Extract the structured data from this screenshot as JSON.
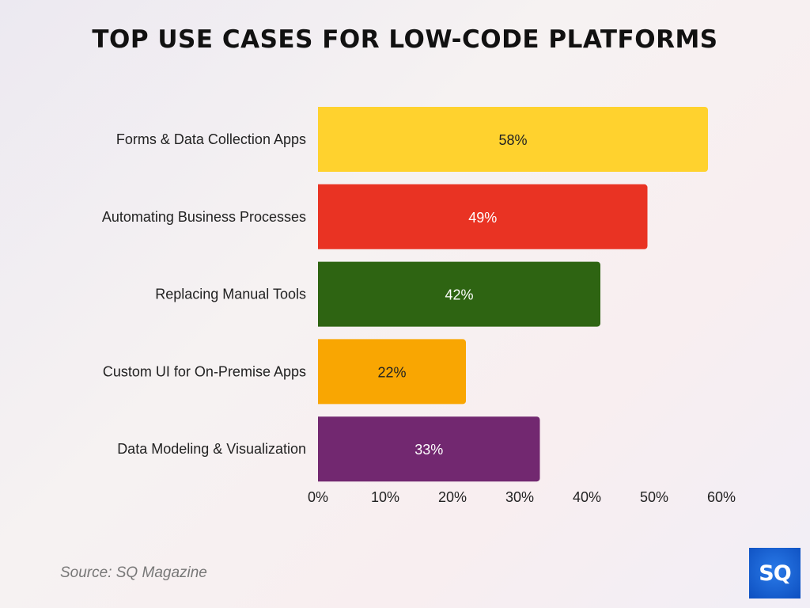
{
  "chart_data": {
    "type": "bar",
    "orientation": "horizontal",
    "title": "TOP USE CASES FOR LOW-CODE PLATFORMS",
    "categories": [
      "Forms & Data Collection Apps",
      "Automating Business Processes",
      "Replacing Manual Tools",
      "Custom UI for On-Premise Apps",
      "Data Modeling & Visualization"
    ],
    "values": [
      58,
      49,
      42,
      22,
      33
    ],
    "data_labels": [
      "58%",
      "49%",
      "42%",
      "22%",
      "33%"
    ],
    "colors": [
      "#FFD22E",
      "#E93323",
      "#2E6412",
      "#F9A602",
      "#722870"
    ],
    "label_colors": [
      "#222222",
      "#ffffff",
      "#ffffff",
      "#222222",
      "#ffffff"
    ],
    "xlim": [
      0,
      60
    ],
    "x_ticks": [
      "0%",
      "10%",
      "20%",
      "30%",
      "40%",
      "50%",
      "60%"
    ],
    "x_tick_values": [
      0,
      10,
      20,
      30,
      40,
      50,
      60
    ],
    "grid": false
  },
  "source": "Source: SQ Magazine",
  "logo": "SQ"
}
